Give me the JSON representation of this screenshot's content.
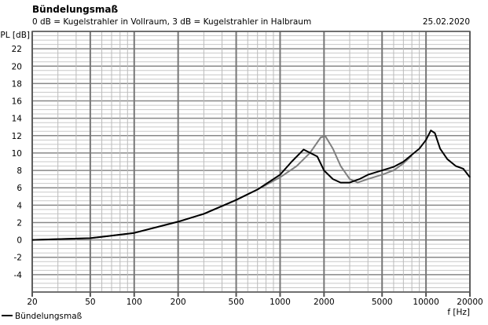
{
  "chart_data": {
    "type": "line",
    "title": "Bündelungsmaß",
    "subtitle": "0 dB = Kugelstrahler in Vollraum, 3 dB = Kugelstrahler in Halbraum",
    "date": "25.02.2020",
    "xlabel": "f [Hz]",
    "ylabel": "SPL [dB]",
    "xscale": "log",
    "xlim": [
      20,
      20000
    ],
    "ylim": [
      -6,
      24
    ],
    "xticks": [
      20,
      50,
      100,
      200,
      500,
      1000,
      2000,
      5000,
      10000,
      20000
    ],
    "xtick_labels": [
      "20",
      "50",
      "100",
      "200",
      "500",
      "1000",
      "2000",
      "5000",
      "10000",
      "20000"
    ],
    "yticks": [
      -4,
      -2,
      0,
      2,
      4,
      6,
      8,
      10,
      12,
      14,
      16,
      18,
      20,
      22
    ],
    "ytick_labels": [
      "-4",
      "-2",
      "0",
      "2",
      "4",
      "6",
      "8",
      "10",
      "12",
      "14",
      "16",
      "18",
      "20",
      "22"
    ],
    "grid": true,
    "legend": "bottom-left",
    "series": [
      {
        "name": "Bündelungsmaß",
        "color": "#000000",
        "x": [
          20,
          50,
          100,
          200,
          300,
          500,
          700,
          1000,
          1200,
          1450,
          1800,
          2000,
          2300,
          2600,
          3000,
          3500,
          4000,
          5000,
          6000,
          7000,
          8000,
          9000,
          10000,
          10800,
          11500,
          12500,
          14000,
          16000,
          18000,
          20000
        ],
        "y": [
          0,
          0.2,
          0.8,
          2.1,
          3.0,
          4.6,
          5.8,
          7.5,
          9.0,
          10.4,
          9.6,
          8.0,
          7.0,
          6.6,
          6.6,
          7.0,
          7.5,
          8.0,
          8.4,
          9.0,
          9.8,
          10.5,
          11.5,
          12.6,
          12.3,
          10.5,
          9.3,
          8.5,
          8.2,
          7.2
        ]
      },
      {
        "name": "",
        "color": "#808080",
        "x": [
          20,
          50,
          100,
          200,
          300,
          500,
          700,
          1000,
          1300,
          1600,
          1900,
          2050,
          2300,
          2600,
          3000,
          3400,
          4000,
          5000,
          6000,
          7000,
          8000
        ],
        "y": [
          0,
          0.2,
          0.8,
          2.1,
          3.0,
          4.6,
          5.8,
          7.2,
          8.5,
          10.0,
          11.8,
          11.9,
          10.5,
          8.5,
          7.0,
          6.6,
          7.0,
          7.5,
          8.0,
          8.8,
          9.7
        ]
      }
    ]
  }
}
